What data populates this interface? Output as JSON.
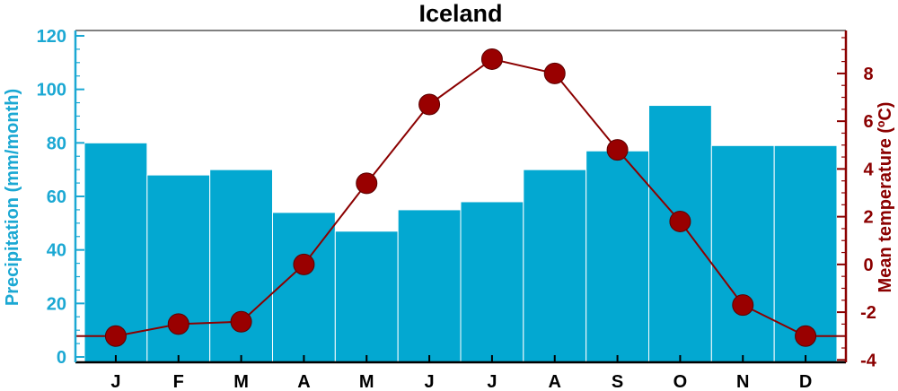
{
  "chart_data": {
    "type": "bar+line",
    "title": "Iceland",
    "categories": [
      "J",
      "F",
      "M",
      "A",
      "M",
      "J",
      "J",
      "A",
      "S",
      "O",
      "N",
      "D"
    ],
    "series": [
      {
        "name": "Precipitation (mm/month)",
        "type": "bar",
        "axis": "left",
        "color": "#03a8d1",
        "values": [
          80,
          68,
          70,
          54,
          47,
          55,
          58,
          70,
          77,
          94,
          79,
          79
        ]
      },
      {
        "name": "Mean temperature (ºC)",
        "type": "line",
        "axis": "right",
        "color": "#8b0000",
        "marker_color": "#990000",
        "values": [
          -3.0,
          -2.5,
          -2.4,
          0.0,
          3.4,
          6.7,
          8.6,
          8.0,
          4.8,
          1.8,
          -1.7,
          -3.0
        ]
      }
    ],
    "y_left": {
      "label": "Precipitation (mm/month)",
      "range": [
        -2,
        122
      ],
      "ticks": [
        0,
        20,
        40,
        60,
        80,
        100,
        120
      ],
      "color": "#1ba8d3"
    },
    "y_right": {
      "label": "Mean temperature (ºC)",
      "range": [
        -4.1,
        9.8
      ],
      "ticks": [
        -4,
        -2,
        0,
        2,
        4,
        6,
        8
      ],
      "color": "#8b0000"
    },
    "grid": false,
    "legend": "none"
  }
}
